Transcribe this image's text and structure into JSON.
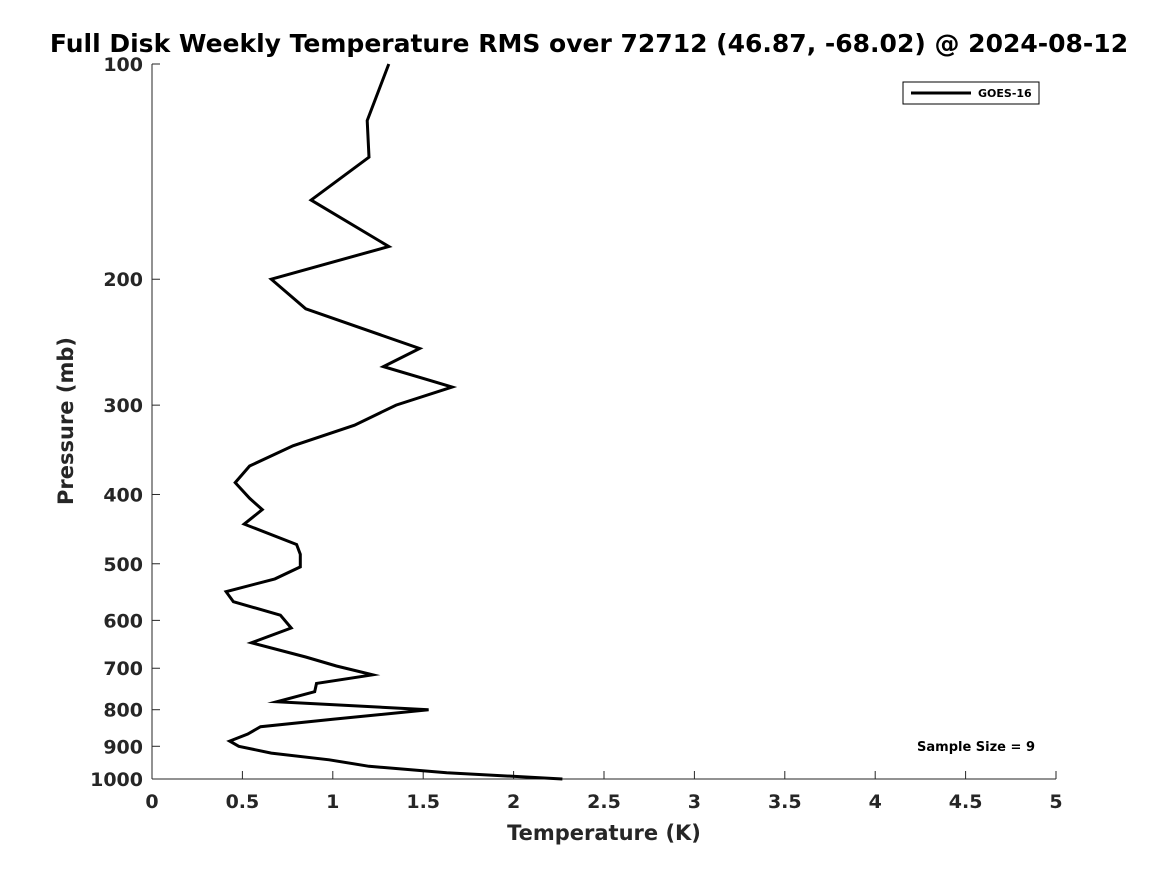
{
  "chart_data": {
    "type": "line",
    "title": "Full Disk Weekly Temperature RMS over 72712 (46.87, -68.02) @ 2024-08-12",
    "xlabel": "Temperature (K)",
    "ylabel": "Pressure (mb)",
    "xlim": [
      0,
      5
    ],
    "ylim": [
      100,
      1000
    ],
    "yscale": "log",
    "yreversed": true,
    "xticks": [
      {
        "value": 0,
        "label": "0"
      },
      {
        "value": 0.5,
        "label": "0.5"
      },
      {
        "value": 1,
        "label": "1"
      },
      {
        "value": 1.5,
        "label": "1.5"
      },
      {
        "value": 2,
        "label": "2"
      },
      {
        "value": 2.5,
        "label": "2.5"
      },
      {
        "value": 3,
        "label": "3"
      },
      {
        "value": 3.5,
        "label": "3.5"
      },
      {
        "value": 4,
        "label": "4"
      },
      {
        "value": 4.5,
        "label": "4.5"
      },
      {
        "value": 5,
        "label": "5"
      }
    ],
    "yticks": [
      {
        "value": 100,
        "label": "100"
      },
      {
        "value": 200,
        "label": "200"
      },
      {
        "value": 300,
        "label": "300"
      },
      {
        "value": 400,
        "label": "400"
      },
      {
        "value": 500,
        "label": "500"
      },
      {
        "value": 600,
        "label": "600"
      },
      {
        "value": 700,
        "label": "700"
      },
      {
        "value": 800,
        "label": "800"
      },
      {
        "value": 900,
        "label": "900"
      },
      {
        "value": 1000,
        "label": "1000"
      }
    ],
    "grid": false,
    "legend": {
      "placement": "top-right"
    },
    "series": [
      {
        "name": "GOES-16",
        "color": "#000000",
        "x": [
          1.31,
          1.19,
          1.2,
          0.88,
          1.31,
          0.66,
          0.85,
          1.48,
          1.28,
          1.66,
          1.35,
          1.12,
          0.78,
          0.54,
          0.46,
          0.54,
          0.61,
          0.51,
          0.8,
          0.82,
          0.82,
          0.68,
          0.41,
          0.45,
          0.71,
          0.77,
          0.55,
          0.85,
          1.02,
          1.22,
          0.91,
          0.9,
          0.69,
          1.53,
          1.0,
          0.6,
          0.53,
          0.43,
          0.48,
          0.66,
          0.98,
          1.2,
          1.63,
          2.27
        ],
        "y": [
          100,
          120,
          135,
          155,
          180,
          200,
          220,
          250,
          265,
          283,
          300,
          320,
          342,
          365,
          385,
          405,
          420,
          440,
          470,
          485,
          505,
          525,
          547,
          565,
          590,
          615,
          645,
          675,
          695,
          715,
          735,
          755,
          780,
          800,
          825,
          845,
          865,
          885,
          900,
          920,
          940,
          960,
          980,
          1000
        ]
      }
    ],
    "annotations": [
      {
        "text": "Sample Size = 9",
        "placement": "bottom-right"
      }
    ]
  }
}
